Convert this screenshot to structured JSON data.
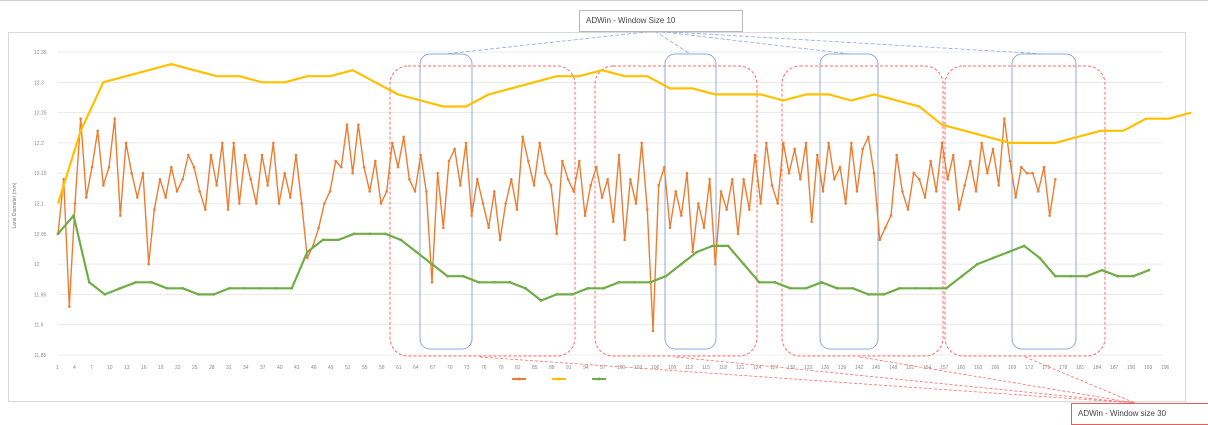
{
  "chart_data": {
    "type": "line",
    "ylabel": "Lane Diameter (mm)",
    "yticks": [
      "12.35",
      "12.3",
      "12.25",
      "12.2",
      "12.15",
      "12.1",
      "12.05",
      "12",
      "11.95",
      "11.9",
      "11.85"
    ],
    "ylim": [
      11.85,
      12.35
    ],
    "xlim": [
      1,
      196
    ],
    "xtick_start": 1,
    "xtick_step": 3,
    "grid": true,
    "legend_position": "bottom",
    "colors": {
      "series_1": "#ed7d31",
      "series_2": "#ffc000",
      "series_3": "#70ad47",
      "window_10": "#8eaadb",
      "window_30": "#ff6b6b"
    },
    "series": [
      {
        "name": "",
        "color": "#ed7d31",
        "values": [
          12.05,
          12.14,
          11.93,
          12.1,
          12.24,
          12.11,
          12.16,
          12.22,
          12.13,
          12.16,
          12.24,
          12.08,
          12.2,
          12.15,
          12.11,
          12.15,
          12.0,
          12.09,
          12.14,
          12.11,
          12.16,
          12.12,
          12.14,
          12.18,
          12.16,
          12.12,
          12.09,
          12.18,
          12.13,
          12.2,
          12.09,
          12.2,
          12.1,
          12.18,
          12.14,
          12.1,
          12.18,
          12.13,
          12.2,
          12.1,
          12.15,
          12.11,
          12.18,
          12.1,
          12.01,
          12.03,
          12.06,
          12.1,
          12.12,
          12.17,
          12.16,
          12.23,
          12.15,
          12.23,
          12.16,
          12.12,
          12.17,
          12.1,
          12.12,
          12.2,
          12.16,
          12.21,
          12.14,
          12.12,
          12.18,
          12.12,
          11.97,
          12.15,
          12.06,
          12.17,
          12.19,
          12.13,
          12.2,
          12.08,
          12.14,
          12.1,
          12.06,
          12.12,
          12.04,
          12.1,
          12.14,
          12.09,
          12.21,
          12.17,
          12.13,
          12.2,
          12.15,
          12.13,
          12.05,
          12.17,
          12.14,
          12.12,
          12.17,
          12.08,
          12.13,
          12.16,
          12.11,
          12.14,
          12.07,
          12.18,
          12.04,
          12.14,
          12.1,
          12.2,
          12.09,
          11.89,
          12.13,
          12.16,
          12.06,
          12.12,
          12.08,
          12.15,
          12.02,
          12.1,
          12.06,
          12.14,
          12.0,
          12.12,
          12.09,
          12.14,
          12.05,
          12.14,
          12.09,
          12.18,
          12.1,
          12.2,
          12.13,
          12.1,
          12.2,
          12.15,
          12.19,
          12.14,
          12.2,
          12.07,
          12.18,
          12.12,
          12.2,
          12.14,
          12.16,
          12.1,
          12.2,
          12.12,
          12.19,
          12.21,
          12.15,
          12.04,
          12.06,
          12.08,
          12.18,
          12.12,
          12.09,
          12.15,
          12.14,
          12.11,
          12.17,
          12.12,
          12.2,
          12.14,
          12.18,
          12.09,
          12.13,
          12.17,
          12.12,
          12.2,
          12.15,
          12.19,
          12.13,
          12.24,
          12.17,
          12.11,
          12.16,
          12.15,
          12.15,
          12.12,
          12.16,
          12.08,
          12.14
        ],
        "xstep": 1
      },
      {
        "name": "",
        "color": "#ffc000",
        "values": [
          12.1,
          12.22,
          12.3,
          12.31,
          12.32,
          12.33,
          12.32,
          12.31,
          12.31,
          12.3,
          12.3,
          12.31,
          12.31,
          12.32,
          12.3,
          12.28,
          12.27,
          12.26,
          12.26,
          12.28,
          12.29,
          12.3,
          12.31,
          12.31,
          12.32,
          12.31,
          12.31,
          12.29,
          12.29,
          12.28,
          12.28,
          12.28,
          12.27,
          12.28,
          12.28,
          12.27,
          12.28,
          12.27,
          12.26,
          12.23,
          12.22,
          12.21,
          12.2,
          12.2,
          12.2,
          12.21,
          12.22,
          12.22,
          12.24,
          12.24,
          12.25
        ],
        "xstep": 4
      },
      {
        "name": "",
        "color": "#70ad47",
        "values": [
          12.05,
          12.08,
          11.97,
          11.95,
          11.96,
          11.97,
          11.97,
          11.96,
          11.96,
          11.95,
          11.95,
          11.96,
          11.96,
          11.96,
          11.96,
          11.96,
          12.02,
          12.04,
          12.04,
          12.05,
          12.05,
          12.05,
          12.04,
          12.02,
          12.0,
          11.98,
          11.98,
          11.97,
          11.97,
          11.97,
          11.96,
          11.94,
          11.95,
          11.95,
          11.96,
          11.96,
          11.97,
          11.97,
          11.97,
          11.98,
          12.0,
          12.02,
          12.03,
          12.03,
          12.0,
          11.97,
          11.97,
          11.96,
          11.96,
          11.97,
          11.96,
          11.96,
          11.95,
          11.95,
          11.96,
          11.96,
          11.96,
          11.96,
          11.98,
          12.0,
          12.01,
          12.02,
          12.03,
          12.01,
          11.98,
          11.98,
          11.98,
          11.99,
          11.98,
          11.98,
          11.99
        ],
        "xstep": 2.75
      }
    ]
  },
  "annotations": {
    "window_10_label": "ADWin - Window Size 10",
    "window_30_label": "ADWin - Window size 30"
  }
}
